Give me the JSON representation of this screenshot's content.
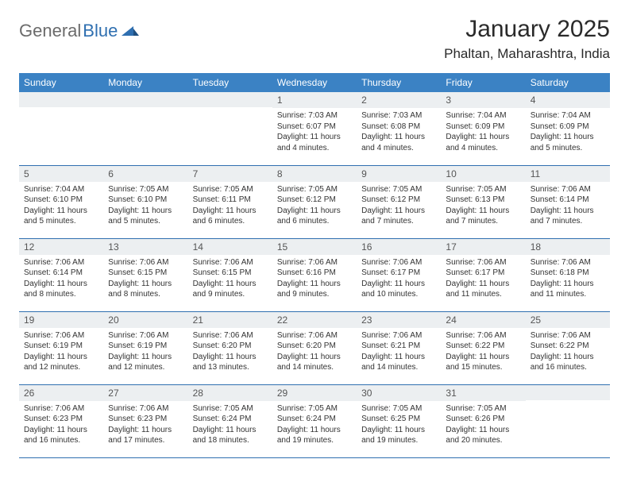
{
  "logo": {
    "text1": "General",
    "text2": "Blue"
  },
  "title": "January 2025",
  "location": "Phaltan, Maharashtra, India",
  "colors": {
    "header_bg": "#3b82c4",
    "header_text": "#ffffff",
    "row_border": "#2f6fb0",
    "daynum_bg": "#eceff1",
    "logo_gray": "#6b6b6b",
    "logo_blue": "#2f6fb0",
    "body_text": "#333333"
  },
  "day_headers": [
    "Sunday",
    "Monday",
    "Tuesday",
    "Wednesday",
    "Thursday",
    "Friday",
    "Saturday"
  ],
  "weeks": [
    [
      {
        "n": "",
        "lines": []
      },
      {
        "n": "",
        "lines": []
      },
      {
        "n": "",
        "lines": []
      },
      {
        "n": "1",
        "lines": [
          "Sunrise: 7:03 AM",
          "Sunset: 6:07 PM",
          "Daylight: 11 hours",
          "and 4 minutes."
        ]
      },
      {
        "n": "2",
        "lines": [
          "Sunrise: 7:03 AM",
          "Sunset: 6:08 PM",
          "Daylight: 11 hours",
          "and 4 minutes."
        ]
      },
      {
        "n": "3",
        "lines": [
          "Sunrise: 7:04 AM",
          "Sunset: 6:09 PM",
          "Daylight: 11 hours",
          "and 4 minutes."
        ]
      },
      {
        "n": "4",
        "lines": [
          "Sunrise: 7:04 AM",
          "Sunset: 6:09 PM",
          "Daylight: 11 hours",
          "and 5 minutes."
        ]
      }
    ],
    [
      {
        "n": "5",
        "lines": [
          "Sunrise: 7:04 AM",
          "Sunset: 6:10 PM",
          "Daylight: 11 hours",
          "and 5 minutes."
        ]
      },
      {
        "n": "6",
        "lines": [
          "Sunrise: 7:05 AM",
          "Sunset: 6:10 PM",
          "Daylight: 11 hours",
          "and 5 minutes."
        ]
      },
      {
        "n": "7",
        "lines": [
          "Sunrise: 7:05 AM",
          "Sunset: 6:11 PM",
          "Daylight: 11 hours",
          "and 6 minutes."
        ]
      },
      {
        "n": "8",
        "lines": [
          "Sunrise: 7:05 AM",
          "Sunset: 6:12 PM",
          "Daylight: 11 hours",
          "and 6 minutes."
        ]
      },
      {
        "n": "9",
        "lines": [
          "Sunrise: 7:05 AM",
          "Sunset: 6:12 PM",
          "Daylight: 11 hours",
          "and 7 minutes."
        ]
      },
      {
        "n": "10",
        "lines": [
          "Sunrise: 7:05 AM",
          "Sunset: 6:13 PM",
          "Daylight: 11 hours",
          "and 7 minutes."
        ]
      },
      {
        "n": "11",
        "lines": [
          "Sunrise: 7:06 AM",
          "Sunset: 6:14 PM",
          "Daylight: 11 hours",
          "and 7 minutes."
        ]
      }
    ],
    [
      {
        "n": "12",
        "lines": [
          "Sunrise: 7:06 AM",
          "Sunset: 6:14 PM",
          "Daylight: 11 hours",
          "and 8 minutes."
        ]
      },
      {
        "n": "13",
        "lines": [
          "Sunrise: 7:06 AM",
          "Sunset: 6:15 PM",
          "Daylight: 11 hours",
          "and 8 minutes."
        ]
      },
      {
        "n": "14",
        "lines": [
          "Sunrise: 7:06 AM",
          "Sunset: 6:15 PM",
          "Daylight: 11 hours",
          "and 9 minutes."
        ]
      },
      {
        "n": "15",
        "lines": [
          "Sunrise: 7:06 AM",
          "Sunset: 6:16 PM",
          "Daylight: 11 hours",
          "and 9 minutes."
        ]
      },
      {
        "n": "16",
        "lines": [
          "Sunrise: 7:06 AM",
          "Sunset: 6:17 PM",
          "Daylight: 11 hours",
          "and 10 minutes."
        ]
      },
      {
        "n": "17",
        "lines": [
          "Sunrise: 7:06 AM",
          "Sunset: 6:17 PM",
          "Daylight: 11 hours",
          "and 11 minutes."
        ]
      },
      {
        "n": "18",
        "lines": [
          "Sunrise: 7:06 AM",
          "Sunset: 6:18 PM",
          "Daylight: 11 hours",
          "and 11 minutes."
        ]
      }
    ],
    [
      {
        "n": "19",
        "lines": [
          "Sunrise: 7:06 AM",
          "Sunset: 6:19 PM",
          "Daylight: 11 hours",
          "and 12 minutes."
        ]
      },
      {
        "n": "20",
        "lines": [
          "Sunrise: 7:06 AM",
          "Sunset: 6:19 PM",
          "Daylight: 11 hours",
          "and 12 minutes."
        ]
      },
      {
        "n": "21",
        "lines": [
          "Sunrise: 7:06 AM",
          "Sunset: 6:20 PM",
          "Daylight: 11 hours",
          "and 13 minutes."
        ]
      },
      {
        "n": "22",
        "lines": [
          "Sunrise: 7:06 AM",
          "Sunset: 6:20 PM",
          "Daylight: 11 hours",
          "and 14 minutes."
        ]
      },
      {
        "n": "23",
        "lines": [
          "Sunrise: 7:06 AM",
          "Sunset: 6:21 PM",
          "Daylight: 11 hours",
          "and 14 minutes."
        ]
      },
      {
        "n": "24",
        "lines": [
          "Sunrise: 7:06 AM",
          "Sunset: 6:22 PM",
          "Daylight: 11 hours",
          "and 15 minutes."
        ]
      },
      {
        "n": "25",
        "lines": [
          "Sunrise: 7:06 AM",
          "Sunset: 6:22 PM",
          "Daylight: 11 hours",
          "and 16 minutes."
        ]
      }
    ],
    [
      {
        "n": "26",
        "lines": [
          "Sunrise: 7:06 AM",
          "Sunset: 6:23 PM",
          "Daylight: 11 hours",
          "and 16 minutes."
        ]
      },
      {
        "n": "27",
        "lines": [
          "Sunrise: 7:06 AM",
          "Sunset: 6:23 PM",
          "Daylight: 11 hours",
          "and 17 minutes."
        ]
      },
      {
        "n": "28",
        "lines": [
          "Sunrise: 7:05 AM",
          "Sunset: 6:24 PM",
          "Daylight: 11 hours",
          "and 18 minutes."
        ]
      },
      {
        "n": "29",
        "lines": [
          "Sunrise: 7:05 AM",
          "Sunset: 6:24 PM",
          "Daylight: 11 hours",
          "and 19 minutes."
        ]
      },
      {
        "n": "30",
        "lines": [
          "Sunrise: 7:05 AM",
          "Sunset: 6:25 PM",
          "Daylight: 11 hours",
          "and 19 minutes."
        ]
      },
      {
        "n": "31",
        "lines": [
          "Sunrise: 7:05 AM",
          "Sunset: 6:26 PM",
          "Daylight: 11 hours",
          "and 20 minutes."
        ]
      },
      {
        "n": "",
        "lines": []
      }
    ]
  ]
}
